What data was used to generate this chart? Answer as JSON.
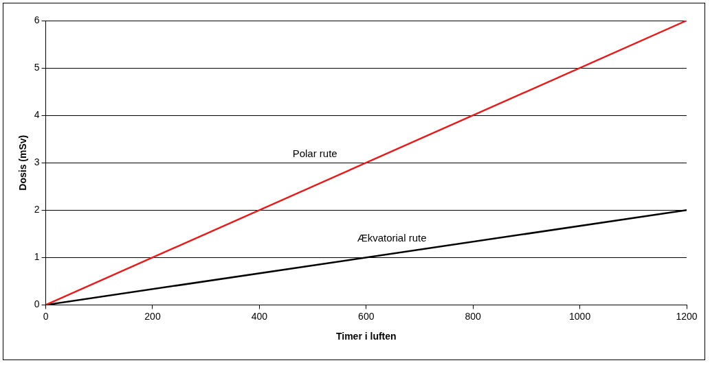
{
  "chart_data": {
    "type": "line",
    "xlabel": "Timer i luften",
    "ylabel": "Dosis (mSv)",
    "x": [
      0,
      1200
    ],
    "series": [
      {
        "name": "Polar rute",
        "color": "#e02020",
        "values": [
          0,
          6
        ]
      },
      {
        "name": "Ækvatorial rute",
        "color": "#000000",
        "values": [
          0,
          2
        ]
      }
    ],
    "xlim": [
      0,
      1200
    ],
    "xticks": [
      0,
      200,
      400,
      600,
      800,
      1000,
      1200
    ],
    "ylim": [
      0,
      6
    ],
    "yticks": [
      0,
      1,
      2,
      3,
      4,
      5,
      6
    ],
    "grid": "y",
    "legend": false,
    "marker": "none",
    "line_style": "solid"
  }
}
